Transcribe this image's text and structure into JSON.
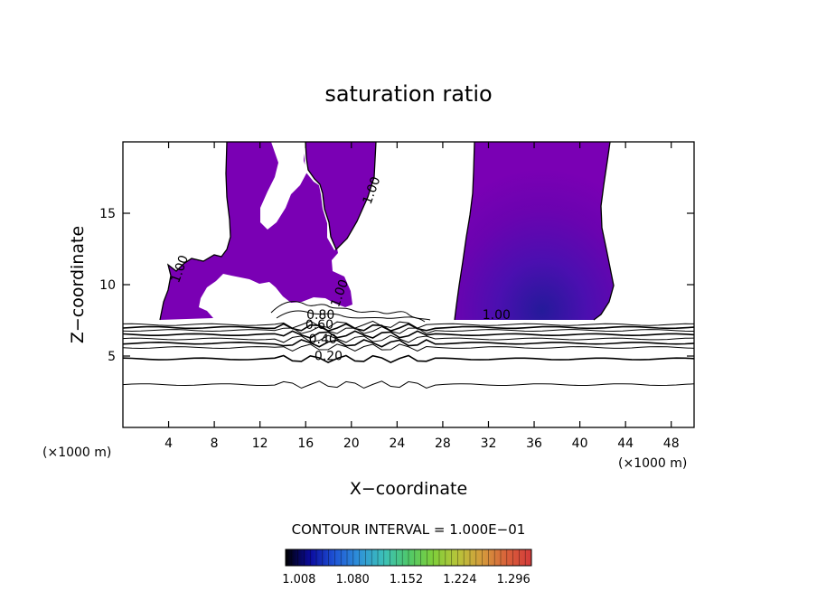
{
  "chart_data": {
    "type": "contour",
    "title": "saturation ratio",
    "xlabel": "X−coordinate",
    "ylabel": "Z−coordinate",
    "x_unit_left": "(×1000 m)",
    "x_unit_right": "(×1000 m)",
    "xlim": [
      0,
      50
    ],
    "ylim": [
      0,
      20
    ],
    "x_ticks": [
      4,
      8,
      12,
      16,
      20,
      24,
      28,
      32,
      36,
      40,
      44,
      48
    ],
    "y_ticks": [
      5,
      10,
      15
    ],
    "contour_interval_text": "CONTOUR INTERVAL = 1.000E−01",
    "colorbar": {
      "tick_labels": [
        "1.008",
        "1.080",
        "1.152",
        "1.224",
        "1.296"
      ],
      "range": [
        0.99,
        1.32
      ],
      "colors": [
        "#000000",
        "#0b0b9e",
        "#1f55d6",
        "#2f93d8",
        "#3cc0b8",
        "#4fc86a",
        "#7fce3a",
        "#b8c43a",
        "#d49a3c",
        "#d8603a",
        "#d43a3a"
      ]
    },
    "contour_labels": [
      {
        "text": "0.20",
        "x": 18.0,
        "y": 4.7
      },
      {
        "text": "0.40",
        "x": 17.5,
        "y": 5.9
      },
      {
        "text": "0.60",
        "x": 17.2,
        "y": 6.9
      },
      {
        "text": "0.80",
        "x": 17.3,
        "y": 7.6
      },
      {
        "text": "1.00",
        "x": 32.7,
        "y": 7.6
      },
      {
        "text": "1.00",
        "x": 5.3,
        "y": 11.0
      },
      {
        "text": "1.00",
        "x": 22.1,
        "y": 16.5
      },
      {
        "text": "1.00",
        "x": 19.3,
        "y": 9.3
      }
    ],
    "level_lines_y": [
      3.0,
      4.8,
      5.6,
      5.9,
      6.2,
      6.5,
      6.8,
      7.0,
      7.2
    ]
  },
  "colors": {
    "supersat_fill": "#7a00b4",
    "supersat_core": "#6500ad",
    "supersat_deep": "#2a1f9c"
  }
}
